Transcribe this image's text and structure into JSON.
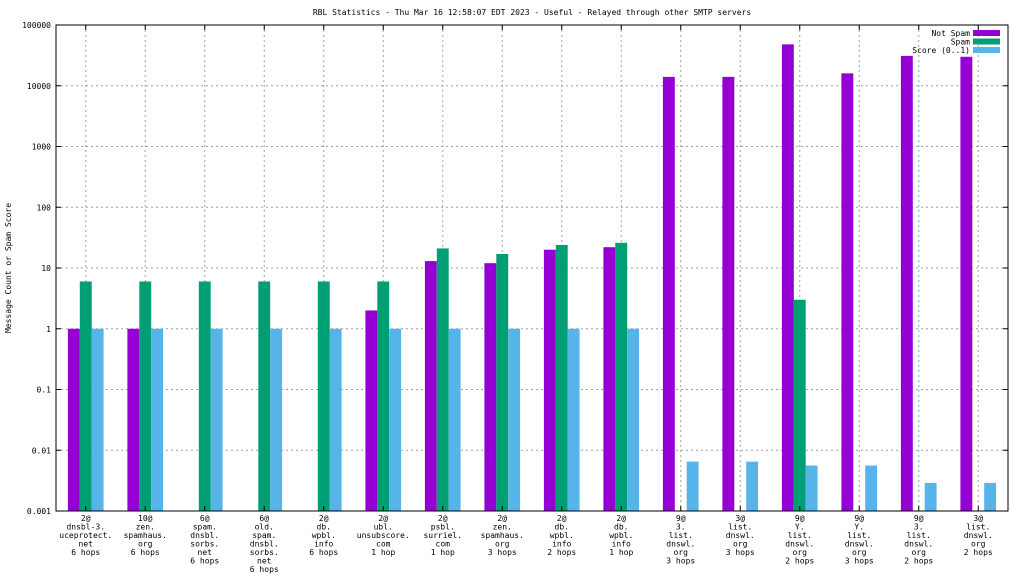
{
  "chart_data": {
    "type": "bar",
    "title": "RBL Statistics - Thu Mar 16 12:58:07 EDT 2023 - Useful - Relayed through other SMTP servers",
    "ylabel": "Message Count or Spam Score",
    "xlabel": "",
    "yscale": "log",
    "ylim": [
      0.001,
      100000
    ],
    "yticks": [
      "0.001",
      "0.01",
      "0.1",
      "1",
      "10",
      "100",
      "1000",
      "10000",
      "100000"
    ],
    "grid": true,
    "legend_position": "top-right",
    "categories": [
      [
        "2@",
        "dnsbl-3.",
        "uceprotect.",
        "net",
        "6 hops"
      ],
      [
        "10@",
        "zen.",
        "spamhaus.",
        "org",
        "6 hops"
      ],
      [
        "6@",
        "spam.",
        "dnsbl.",
        "sorbs.",
        "net",
        "6 hops"
      ],
      [
        "6@",
        "old.",
        "spam.",
        "dnsbl.",
        "sorbs.",
        "net",
        "6 hops"
      ],
      [
        "2@",
        "db.",
        "wpbl.",
        "info",
        "6 hops"
      ],
      [
        "2@",
        "ubl.",
        "unsubscore.",
        "com",
        "1 hop"
      ],
      [
        "2@",
        "psbl.",
        "surriel.",
        "com",
        "1 hop"
      ],
      [
        "2@",
        "zen.",
        "spamhaus.",
        "org",
        "3 hops"
      ],
      [
        "2@",
        "db.",
        "wpbl.",
        "info",
        "2 hops"
      ],
      [
        "2@",
        "db.",
        "wpbl.",
        "info",
        "1 hop"
      ],
      [
        "9@",
        "3.",
        "list.",
        "dnswl.",
        "org",
        "3 hops"
      ],
      [
        "3@",
        "list.",
        "dnswl.",
        "org",
        "3 hops"
      ],
      [
        "9@",
        "Y.",
        "list.",
        "dnswl.",
        "org",
        "2 hops"
      ],
      [
        "9@",
        "Y.",
        "list.",
        "dnswl.",
        "org",
        "3 hops"
      ],
      [
        "9@",
        "3.",
        "list.",
        "dnswl.",
        "org",
        "2 hops"
      ],
      [
        "3@",
        "list.",
        "dnswl.",
        "org",
        "2 hops"
      ]
    ],
    "series": [
      {
        "name": "Not Spam",
        "color": "#9400d3",
        "values": [
          1,
          1,
          null,
          null,
          null,
          2,
          13,
          12,
          20,
          22,
          14000,
          14000,
          48000,
          16000,
          31000,
          30000
        ]
      },
      {
        "name": "Spam",
        "color": "#009e73",
        "values": [
          6,
          6,
          6,
          6,
          6,
          6,
          21,
          17,
          24,
          26,
          null,
          null,
          3,
          null,
          null,
          null
        ]
      },
      {
        "name": "Score (0..1)",
        "color": "#56b4e9",
        "values": [
          1,
          1,
          1,
          1,
          1,
          1,
          1,
          1,
          1,
          1,
          0.0065,
          0.0065,
          0.0056,
          0.0056,
          0.0029,
          0.0029
        ]
      }
    ]
  }
}
